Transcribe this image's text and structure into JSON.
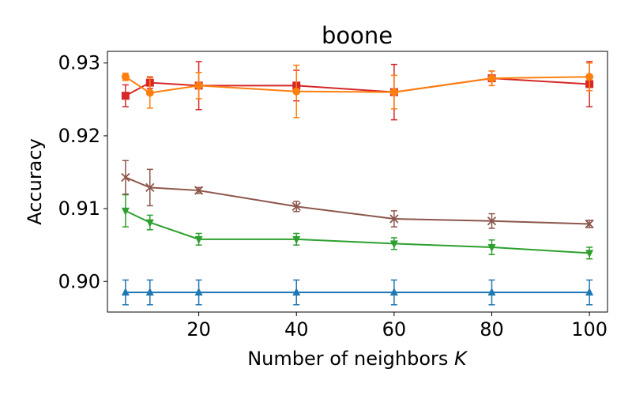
{
  "chart_data": {
    "type": "line",
    "title": "boone",
    "xlabel": "Number of neighbors",
    "xlabel_var": "K",
    "ylabel": "Accuracy",
    "xlim": [
      1.3,
      103.7
    ],
    "ylim": [
      0.8958,
      0.9316
    ],
    "xticks": [
      20,
      40,
      60,
      80,
      100
    ],
    "xtick_labels": [
      "20",
      "40",
      "60",
      "80",
      "100"
    ],
    "yticks": [
      0.9,
      0.91,
      0.92,
      0.93
    ],
    "ytick_labels": [
      "0.90",
      "0.91",
      "0.92",
      "0.93"
    ],
    "grid": false,
    "x": [
      5,
      10,
      20,
      40,
      60,
      80,
      100
    ],
    "series": [
      {
        "color": "#1f77b4",
        "marker": "triangle-up",
        "values": [
          0.8985,
          0.8985,
          0.8985,
          0.8985,
          0.8985,
          0.8985,
          0.8985
        ],
        "errors": [
          0.0017,
          0.0017,
          0.0017,
          0.0017,
          0.0017,
          0.0017,
          0.0017
        ]
      },
      {
        "color": "#2ca02c",
        "marker": "triangle-down",
        "values": [
          0.9097,
          0.9081,
          0.9058,
          0.9058,
          0.9052,
          0.9047,
          0.9039
        ],
        "errors": [
          0.0022,
          0.001,
          0.0008,
          0.0008,
          0.0008,
          0.001,
          0.0008
        ]
      },
      {
        "color": "#8c564b",
        "marker": "x",
        "values": [
          0.9143,
          0.9129,
          0.9125,
          0.9103,
          0.9086,
          0.9083,
          0.9079
        ],
        "errors": [
          0.0023,
          0.0025,
          0.0004,
          0.0007,
          0.0011,
          0.001,
          0.0005
        ]
      },
      {
        "color": "#d62728",
        "marker": "square",
        "values": [
          0.9255,
          0.9273,
          0.9269,
          0.9269,
          0.926,
          0.9279,
          0.9271
        ],
        "errors": [
          0.0015,
          0.0008,
          0.0033,
          0.0021,
          0.0038,
          0.001,
          0.0031
        ]
      },
      {
        "color": "#ff7f0e",
        "marker": "circle",
        "values": [
          0.9281,
          0.9259,
          0.9269,
          0.9261,
          0.926,
          0.9279,
          0.9281
        ],
        "errors": [
          0.0005,
          0.0021,
          0.0018,
          0.0036,
          0.0023,
          0.001,
          0.0019
        ]
      }
    ]
  }
}
